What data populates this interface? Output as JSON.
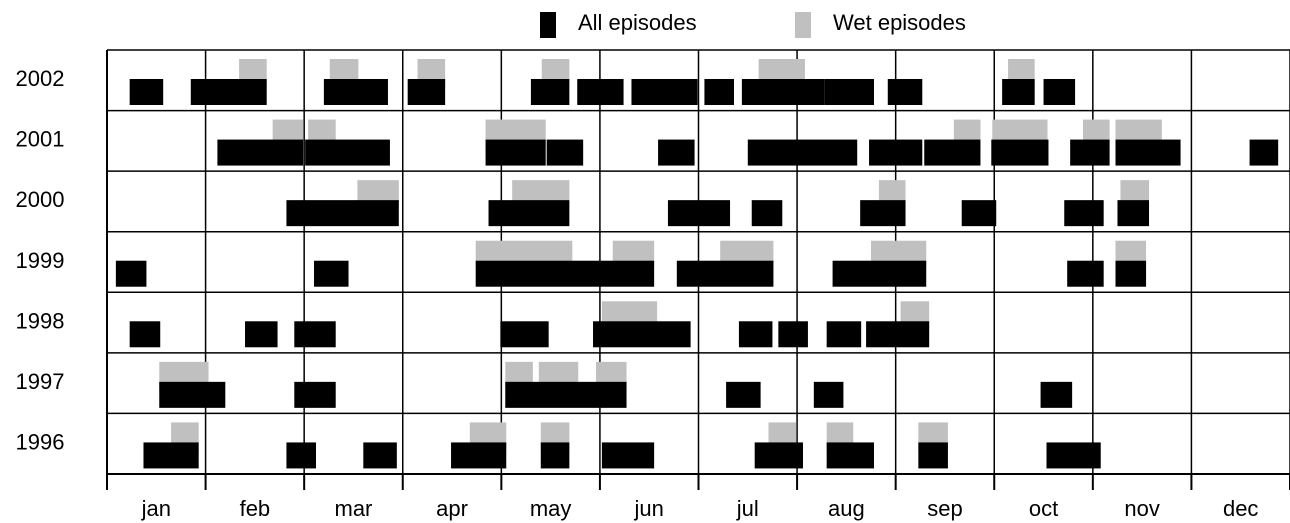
{
  "chart_data": {
    "type": "timeline",
    "categories": [
      "2002",
      "2001",
      "2000",
      "1999",
      "1998",
      "1997",
      "1996"
    ],
    "x_categories": [
      "jan",
      "feb",
      "mar",
      "apr",
      "may",
      "jun",
      "jul",
      "aug",
      "sep",
      "oct",
      "nov",
      "dec"
    ],
    "xlim": [
      0,
      12
    ],
    "xticks": [
      0,
      1,
      2,
      3,
      4,
      5,
      6,
      7,
      8,
      9,
      10,
      11,
      12
    ],
    "grid": true,
    "series": [
      {
        "name": "Wet episodes",
        "color": "#c0c0c0",
        "values": [
          [
            [
              1.34,
              1.62
            ],
            [
              2.26,
              2.55
            ],
            [
              3.15,
              3.43
            ],
            [
              4.41,
              4.69
            ],
            [
              6.61,
              7.08
            ],
            [
              9.14,
              9.41
            ]
          ],
          [
            [
              1.68,
              1.99
            ],
            [
              2.04,
              2.32
            ],
            [
              3.84,
              4.45
            ],
            [
              8.59,
              8.86
            ],
            [
              8.98,
              9.54
            ],
            [
              9.9,
              10.17
            ],
            [
              10.23,
              10.7
            ]
          ],
          [
            [
              2.54,
              2.96
            ],
            [
              4.11,
              4.69
            ],
            [
              7.83,
              8.1
            ],
            [
              10.28,
              10.57
            ]
          ],
          [
            [
              3.74,
              4.72
            ],
            [
              5.13,
              5.55
            ],
            [
              6.22,
              6.76
            ],
            [
              7.75,
              8.31
            ],
            [
              10.23,
              10.54
            ]
          ],
          [
            [
              5.02,
              5.58
            ],
            [
              8.05,
              8.34
            ]
          ],
          [
            [
              0.53,
              1.03
            ],
            [
              4.04,
              4.32
            ],
            [
              4.38,
              4.78
            ],
            [
              4.96,
              5.27
            ]
          ],
          [
            [
              0.65,
              0.93
            ],
            [
              3.68,
              4.05
            ],
            [
              4.4,
              4.69
            ],
            [
              6.71,
              6.99
            ],
            [
              7.3,
              7.57
            ],
            [
              8.23,
              8.53
            ]
          ]
        ]
      },
      {
        "name": "All episodes",
        "color": "#000000",
        "values": [
          [
            [
              0.23,
              0.57
            ],
            [
              0.85,
              1.62
            ],
            [
              2.2,
              2.85
            ],
            [
              3.05,
              3.43
            ],
            [
              4.3,
              4.69
            ],
            [
              4.77,
              5.24
            ],
            [
              5.32,
              5.99
            ],
            [
              6.06,
              6.36
            ],
            [
              6.44,
              7.28
            ],
            [
              7.28,
              7.78
            ],
            [
              7.92,
              8.27
            ],
            [
              9.08,
              9.41
            ],
            [
              9.5,
              9.82
            ]
          ],
          [
            [
              1.12,
              1.99
            ],
            [
              2.01,
              2.87
            ],
            [
              3.84,
              4.45
            ],
            [
              4.46,
              4.83
            ],
            [
              5.59,
              5.96
            ],
            [
              6.5,
              7.61
            ],
            [
              7.73,
              8.27
            ],
            [
              8.29,
              8.86
            ],
            [
              8.97,
              9.55
            ],
            [
              9.77,
              10.17
            ],
            [
              10.23,
              10.89
            ],
            [
              11.59,
              11.88
            ]
          ],
          [
            [
              1.82,
              2.96
            ],
            [
              3.87,
              4.69
            ],
            [
              5.69,
              6.32
            ],
            [
              6.54,
              6.85
            ],
            [
              7.64,
              8.1
            ],
            [
              8.67,
              9.02
            ],
            [
              9.71,
              10.11
            ],
            [
              10.25,
              10.57
            ]
          ],
          [
            [
              0.09,
              0.4
            ],
            [
              2.1,
              2.45
            ],
            [
              3.74,
              5.55
            ],
            [
              5.78,
              6.76
            ],
            [
              7.36,
              8.31
            ],
            [
              9.74,
              10.11
            ],
            [
              10.23,
              10.54
            ]
          ],
          [
            [
              0.23,
              0.54
            ],
            [
              1.4,
              1.73
            ],
            [
              1.9,
              2.32
            ],
            [
              3.99,
              4.48
            ],
            [
              4.93,
              5.92
            ],
            [
              6.41,
              6.75
            ],
            [
              6.81,
              7.11
            ],
            [
              7.3,
              7.65
            ],
            [
              7.7,
              8.34
            ]
          ],
          [
            [
              0.53,
              1.2
            ],
            [
              1.9,
              2.32
            ],
            [
              4.04,
              5.27
            ],
            [
              6.28,
              6.63
            ],
            [
              7.17,
              7.47
            ],
            [
              9.47,
              9.79
            ]
          ],
          [
            [
              0.37,
              0.93
            ],
            [
              1.82,
              2.12
            ],
            [
              2.6,
              2.94
            ],
            [
              3.49,
              4.05
            ],
            [
              4.4,
              4.69
            ],
            [
              5.02,
              5.55
            ],
            [
              6.57,
              7.06
            ],
            [
              7.3,
              7.78
            ],
            [
              8.23,
              8.53
            ],
            [
              9.53,
              10.08
            ]
          ]
        ]
      }
    ]
  }
}
